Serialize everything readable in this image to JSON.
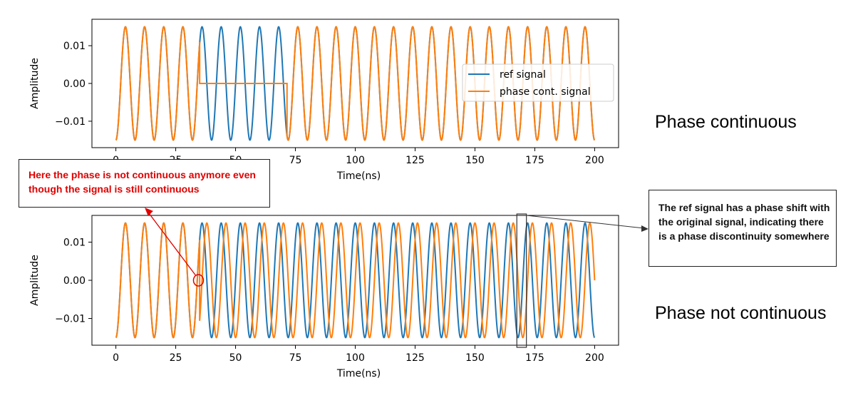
{
  "chart_data": [
    {
      "type": "line",
      "title": "",
      "xlabel": "Time(ns)",
      "ylabel": "Amplitude",
      "xlim": [
        -10,
        210
      ],
      "ylim": [
        -0.017,
        0.017
      ],
      "xticks": [
        0,
        25,
        50,
        75,
        100,
        125,
        150,
        175,
        200
      ],
      "yticks": [
        0.01,
        0.0,
        -0.01
      ],
      "ytick_labels": [
        "0.01",
        "0.00",
        "−0.01"
      ],
      "legend": {
        "placement": "center-right",
        "entries": [
          "ref signal",
          "phase cont. signal"
        ]
      },
      "series": [
        {
          "name": "ref signal",
          "color": "#1f77b4",
          "amplitude": 0.015,
          "period_ns": 8,
          "start_phase": "-cos",
          "x_range": [
            0,
            200
          ]
        },
        {
          "name": "phase cont. signal",
          "color": "#ff7f0e",
          "amplitude": 0.015,
          "period_ns": 8,
          "start_phase": "-cos",
          "x_range": [
            0,
            200
          ],
          "flat_segment": {
            "x_start": 35,
            "x_end": 71.5,
            "value": 0.0,
            "jump_peak": 0.011
          }
        }
      ]
    },
    {
      "type": "line",
      "title": "",
      "xlabel": "Time(ns)",
      "ylabel": "Amplitude",
      "xlim": [
        -10,
        210
      ],
      "ylim": [
        -0.017,
        0.017
      ],
      "xticks": [
        0,
        25,
        50,
        75,
        100,
        125,
        150,
        175,
        200
      ],
      "yticks": [
        0.01,
        0.0,
        -0.01
      ],
      "ytick_labels": [
        "0.01",
        "0.00",
        "−0.01"
      ],
      "series": [
        {
          "name": "ref signal",
          "color": "#1f77b4",
          "amplitude": 0.015,
          "period_ns": 8,
          "start_phase": "-cos",
          "x_range": [
            0,
            200
          ]
        },
        {
          "name": "phase cont. signal",
          "color": "#ff7f0e",
          "amplitude": 0.015,
          "period_ns": 8,
          "start_phase": "-cos",
          "x_range": [
            0,
            200
          ],
          "restart_at": 35,
          "restart_time_shift_ns": 1
        }
      ]
    }
  ],
  "annotations": {
    "left_callout": "Here the phase is not continuous anymore even though the signal is still continuous",
    "right_callout": "The ref signal has a phase shift with the original signal, indicating there is a phase discontinuity somewhere",
    "top_label": "Phase continuous",
    "bottom_label": "Phase not continuous",
    "highlight_x": 34.5,
    "highlight_box_x": [
      167.5,
      171.5
    ],
    "accent_color": "#e00000"
  }
}
